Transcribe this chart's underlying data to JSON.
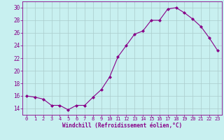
{
  "x": [
    0,
    1,
    2,
    3,
    4,
    5,
    6,
    7,
    8,
    9,
    10,
    11,
    12,
    13,
    14,
    15,
    16,
    17,
    18,
    19,
    20,
    21,
    22,
    23
  ],
  "y": [
    16,
    15.8,
    15.5,
    14.5,
    14.5,
    13.8,
    14.5,
    14.5,
    15.8,
    17.0,
    19.0,
    22.2,
    24.0,
    25.8,
    26.3,
    28.0,
    28.0,
    29.8,
    30.0,
    29.2,
    28.2,
    27.0,
    25.2,
    23.2
  ],
  "line_color": "#880088",
  "marker_color": "#880088",
  "bg_color": "#c8f0f0",
  "grid_color": "#aacccc",
  "axis_color": "#880088",
  "tick_color": "#880088",
  "xlabel": "Windchill (Refroidissement éolien,°C)",
  "xlim": [
    -0.5,
    23.5
  ],
  "ylim": [
    13.0,
    31.0
  ],
  "yticks": [
    14,
    16,
    18,
    20,
    22,
    24,
    26,
    28,
    30
  ],
  "xticks": [
    0,
    1,
    2,
    3,
    4,
    5,
    6,
    7,
    8,
    9,
    10,
    11,
    12,
    13,
    14,
    15,
    16,
    17,
    18,
    19,
    20,
    21,
    22,
    23
  ]
}
